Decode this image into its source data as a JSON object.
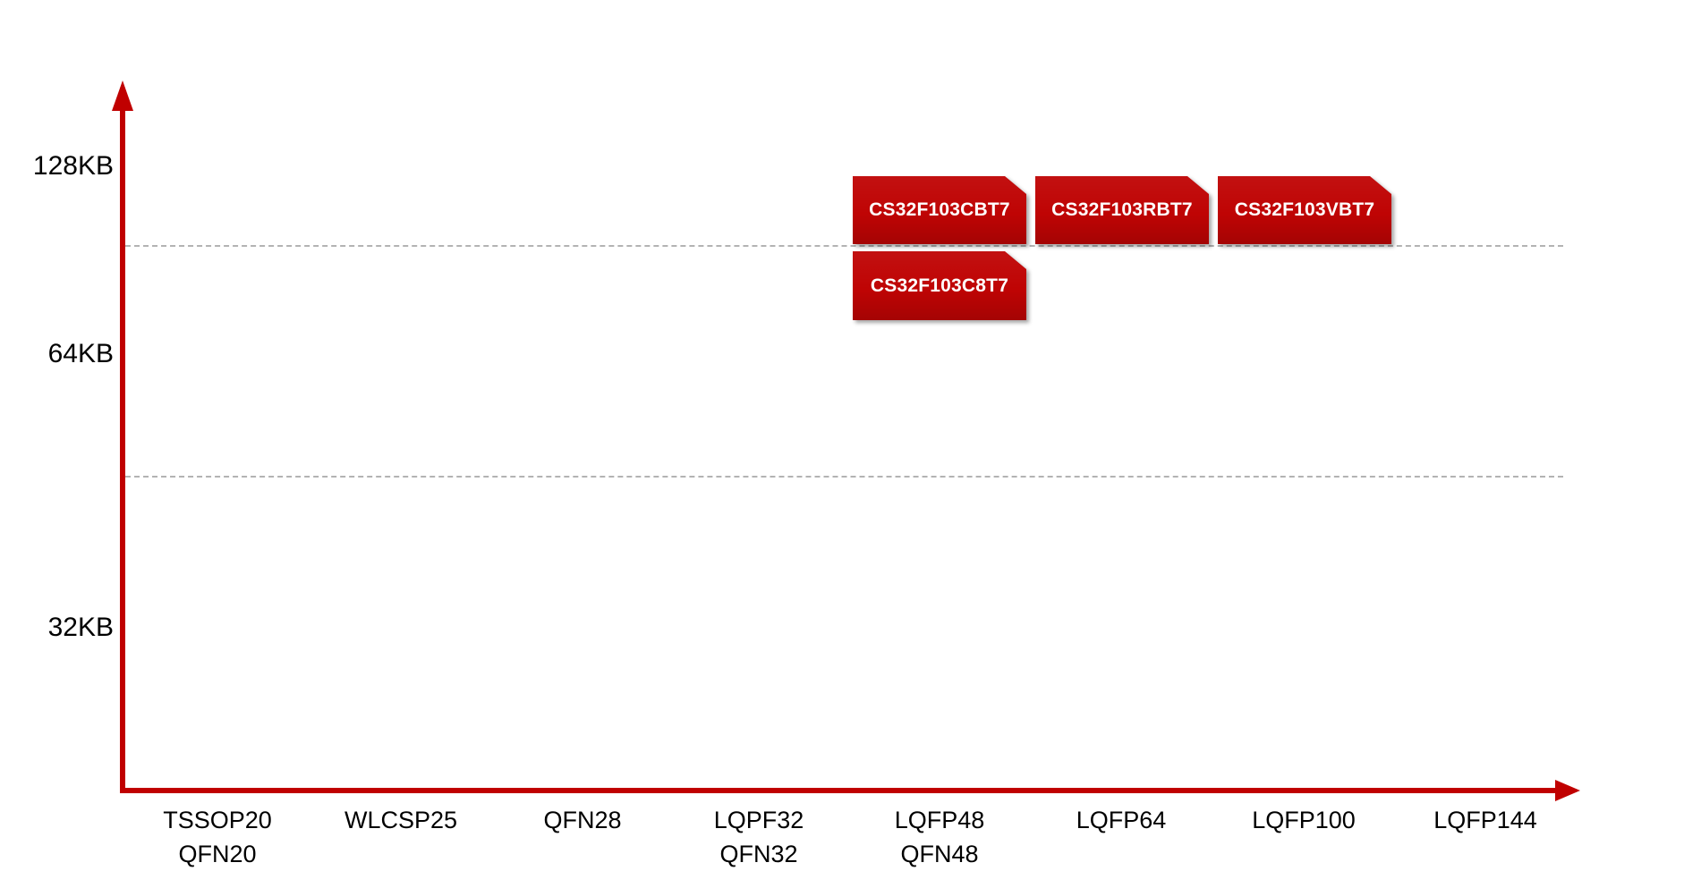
{
  "colors": {
    "accent": "#c00000",
    "chip_red": "#bf0404",
    "chip_text": "#ffffff",
    "grid": "#b3b3b3",
    "label": "#000000",
    "background": "#ffffff"
  },
  "y_axis": {
    "labels": [
      {
        "text": "128KB"
      },
      {
        "text": "64KB"
      },
      {
        "text": "32KB"
      }
    ]
  },
  "x_axis": {
    "columns": [
      {
        "line1": "TSSOP20",
        "line2": "QFN20"
      },
      {
        "line1": "WLCSP25"
      },
      {
        "line1": "QFN28"
      },
      {
        "line1": "LQPF32",
        "line2": "QFN32"
      },
      {
        "line1": "LQFP48",
        "line2": "QFN48"
      },
      {
        "line1": "LQFP64"
      },
      {
        "line1": "LQFP100"
      },
      {
        "line1": "LQFP144"
      }
    ]
  },
  "chips": [
    {
      "label": "CS32F103CBT7"
    },
    {
      "label": "CS32F103RBT7"
    },
    {
      "label": "CS32F103VBT7"
    },
    {
      "label": "CS32F103C8T7"
    }
  ],
  "chart_data": {
    "type": "scatter",
    "title": "",
    "xlabel": "",
    "ylabel": "",
    "x_categories": [
      [
        "TSSOP20",
        "QFN20"
      ],
      [
        "WLCSP25"
      ],
      [
        "QFN28"
      ],
      [
        "LQPF32",
        "QFN32"
      ],
      [
        "LQFP48",
        "QFN48"
      ],
      [
        "LQFP64"
      ],
      [
        "LQFP100"
      ],
      [
        "LQFP144"
      ]
    ],
    "y_ticks": [
      "128KB",
      "64KB",
      "32KB"
    ],
    "grid": "two dashed horizontal lines, one between 128KB and 64KB, one between 64KB and 32KB",
    "legend_position": "none",
    "points": [
      {
        "label": "CS32F103CBT7",
        "x": "LQFP48",
        "y_band": "96KB-128KB",
        "flash_kb": 128
      },
      {
        "label": "CS32F103RBT7",
        "x": "LQFP64",
        "y_band": "96KB-128KB",
        "flash_kb": 128
      },
      {
        "label": "CS32F103VBT7",
        "x": "LQFP100",
        "y_band": "96KB-128KB",
        "flash_kb": 128
      },
      {
        "label": "CS32F103C8T7",
        "x": "LQFP48",
        "y_band": "64KB-96KB",
        "flash_kb": 64
      }
    ]
  }
}
